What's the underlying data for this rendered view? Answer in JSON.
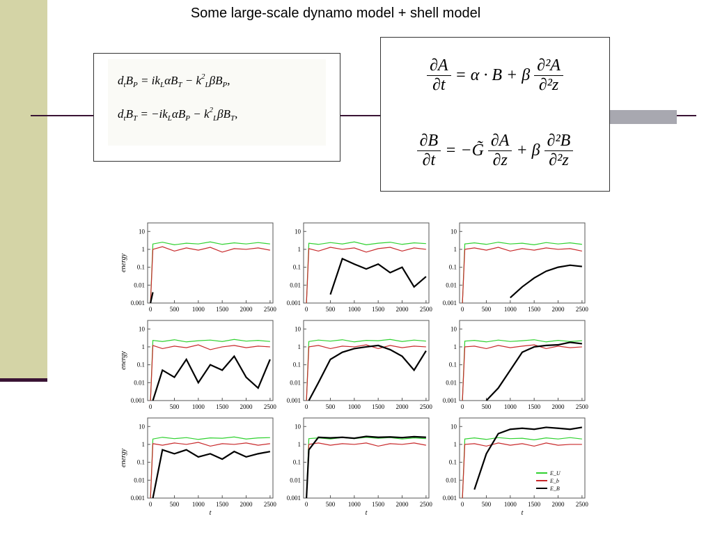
{
  "title": "Some large-scale dynamo model + shell model",
  "equations_left": [
    [
      {
        "text": "d"
      },
      {
        "text": "t",
        "style": "sub"
      },
      {
        "text": "B"
      },
      {
        "text": "P",
        "style": "sub"
      },
      {
        "text": " = ik"
      },
      {
        "text": "L",
        "style": "sub"
      },
      {
        "text": "αB"
      },
      {
        "text": "T",
        "style": "sub"
      },
      {
        "text": " − k"
      },
      {
        "text": "2",
        "style": "sup"
      },
      {
        "text": "L",
        "style": "sub"
      },
      {
        "text": "βB"
      },
      {
        "text": "P",
        "style": "sub"
      },
      {
        "text": ","
      }
    ],
    [
      {
        "text": "d"
      },
      {
        "text": "t",
        "style": "sub"
      },
      {
        "text": "B"
      },
      {
        "text": "T",
        "style": "sub"
      },
      {
        "text": " = −ik"
      },
      {
        "text": "L",
        "style": "sub"
      },
      {
        "text": "αB"
      },
      {
        "text": "P",
        "style": "sub"
      },
      {
        "text": " − k"
      },
      {
        "text": "2",
        "style": "sup"
      },
      {
        "text": "L",
        "style": "sub"
      },
      {
        "text": "βB"
      },
      {
        "text": "T",
        "style": "sub"
      },
      {
        "text": ","
      }
    ]
  ],
  "equations_right": [
    [
      {
        "num": "∂A",
        "den": "∂t"
      },
      {
        "text": "= α · B + β"
      },
      {
        "num": "∂²A",
        "den": "∂²z"
      }
    ],
    [
      {
        "num": "∂B",
        "den": "∂t"
      },
      {
        "text": "= −G̃"
      },
      {
        "num": "∂A",
        "den": "∂z"
      },
      {
        "text": "+ β"
      },
      {
        "num": "∂²B",
        "den": "∂²z"
      }
    ]
  ],
  "chart_data": [
    {
      "type": "line",
      "ylabel": "energy",
      "log_y": true,
      "x": [
        0,
        50,
        250,
        500,
        750,
        1000,
        1250,
        1500,
        1750,
        2000,
        2250,
        2500
      ],
      "xlim": [
        -60,
        2560
      ],
      "ylim": [
        0.001,
        30
      ],
      "xticks": [
        0,
        500,
        1000,
        1500,
        2000,
        2500
      ],
      "yticks": [
        0.001,
        0.01,
        0.1,
        1,
        10
      ],
      "series": [
        {
          "color": "#2fd12f",
          "values": [
            0.001,
            2,
            2.5,
            1.8,
            2.2,
            2,
            2.6,
            1.9,
            2.3,
            2,
            2.4,
            2
          ]
        },
        {
          "color": "#c8282a",
          "values": [
            0.001,
            1,
            1.4,
            0.8,
            1.2,
            0.9,
            1.3,
            0.7,
            1.1,
            1,
            1.2,
            0.9
          ]
        },
        {
          "color": "#000000",
          "values": [
            0.001,
            0.004,
            null,
            null,
            null,
            null,
            null,
            null,
            null,
            null,
            null,
            null
          ]
        }
      ]
    },
    {
      "type": "line",
      "log_y": true,
      "x": [
        0,
        50,
        250,
        500,
        750,
        1000,
        1250,
        1500,
        1750,
        2000,
        2250,
        2500
      ],
      "xlim": [
        -60,
        2560
      ],
      "ylim": [
        0.001,
        30
      ],
      "xticks": [
        0,
        500,
        1000,
        1500,
        2000,
        2500
      ],
      "yticks": [
        0.001,
        0.01,
        0.1,
        1,
        10
      ],
      "series": [
        {
          "color": "#2fd12f",
          "values": [
            0.001,
            2.2,
            1.9,
            2.4,
            2,
            2.6,
            1.8,
            2.2,
            2.5,
            1.9,
            2.3,
            2.1
          ]
        },
        {
          "color": "#c8282a",
          "values": [
            0.001,
            1.1,
            0.8,
            1.3,
            1,
            1.2,
            0.7,
            1.1,
            1.3,
            0.8,
            1.2,
            1
          ]
        },
        {
          "color": "#000000",
          "values": [
            null,
            null,
            null,
            0.003,
            0.3,
            0.15,
            0.08,
            0.15,
            0.05,
            0.1,
            0.008,
            0.03
          ]
        }
      ]
    },
    {
      "type": "line",
      "log_y": true,
      "x": [
        0,
        50,
        250,
        500,
        750,
        1000,
        1250,
        1500,
        1750,
        2000,
        2250,
        2500
      ],
      "xlim": [
        -60,
        2560
      ],
      "ylim": [
        0.001,
        30
      ],
      "xticks": [
        0,
        500,
        1000,
        1500,
        2000,
        2500
      ],
      "yticks": [
        0.001,
        0.01,
        0.1,
        1,
        10
      ],
      "series": [
        {
          "color": "#2fd12f",
          "values": [
            0.001,
            2,
            2.3,
            1.9,
            2.5,
            2,
            2.2,
            1.8,
            2.4,
            2,
            2.3,
            1.9
          ]
        },
        {
          "color": "#c8282a",
          "values": [
            0.001,
            1,
            1.2,
            0.9,
            1.3,
            0.8,
            1.1,
            0.9,
            1.2,
            1,
            1.1,
            0.8
          ]
        },
        {
          "color": "#000000",
          "values": [
            null,
            null,
            null,
            null,
            null,
            0.002,
            0.008,
            0.025,
            0.06,
            0.1,
            0.13,
            0.11
          ]
        }
      ]
    },
    {
      "type": "line",
      "ylabel": "energy",
      "log_y": true,
      "x": [
        0,
        50,
        250,
        500,
        750,
        1000,
        1250,
        1500,
        1750,
        2000,
        2250,
        2500
      ],
      "xlim": [
        -60,
        2560
      ],
      "ylim": [
        0.001,
        30
      ],
      "xticks": [
        0,
        500,
        1000,
        1500,
        2000,
        2500
      ],
      "yticks": [
        0.001,
        0.01,
        0.1,
        1,
        10
      ],
      "series": [
        {
          "color": "#2fd12f",
          "values": [
            0.001,
            2.3,
            2,
            2.5,
            1.9,
            2.2,
            2.4,
            2,
            2.6,
            2.1,
            2.3,
            2
          ]
        },
        {
          "color": "#c8282a",
          "values": [
            0.001,
            1.2,
            0.8,
            1.1,
            0.9,
            1.3,
            0.7,
            1,
            1.2,
            0.9,
            1.1,
            1
          ]
        },
        {
          "color": "#000000",
          "values": [
            null,
            0.001,
            0.05,
            0.02,
            0.2,
            0.01,
            0.1,
            0.05,
            0.3,
            0.02,
            0.005,
            0.2
          ]
        }
      ]
    },
    {
      "type": "line",
      "log_y": true,
      "x": [
        0,
        50,
        250,
        500,
        750,
        1000,
        1250,
        1500,
        1750,
        2000,
        2250,
        2500
      ],
      "xlim": [
        -60,
        2560
      ],
      "ylim": [
        0.001,
        30
      ],
      "xticks": [
        0,
        500,
        1000,
        1500,
        2000,
        2500
      ],
      "yticks": [
        0.001,
        0.01,
        0.1,
        1,
        10
      ],
      "series": [
        {
          "color": "#2fd12f",
          "values": [
            0.001,
            2,
            2.4,
            2.1,
            2.5,
            1.9,
            2.3,
            2.2,
            2.6,
            2,
            2.4,
            2.1
          ]
        },
        {
          "color": "#c8282a",
          "values": [
            0.001,
            1,
            1.2,
            0.8,
            1.1,
            1,
            1.3,
            0.8,
            1.2,
            0.9,
            1.1,
            1
          ]
        },
        {
          "color": "#000000",
          "values": [
            null,
            0.001,
            0.01,
            0.2,
            0.5,
            0.8,
            1,
            1.2,
            0.7,
            0.3,
            0.05,
            0.6
          ]
        }
      ]
    },
    {
      "type": "line",
      "log_y": true,
      "x": [
        0,
        50,
        250,
        500,
        750,
        1000,
        1250,
        1500,
        1750,
        2000,
        2250,
        2500
      ],
      "xlim": [
        -60,
        2560
      ],
      "ylim": [
        0.001,
        30
      ],
      "xticks": [
        0,
        500,
        1000,
        1500,
        2000,
        2500
      ],
      "yticks": [
        0.001,
        0.01,
        0.1,
        1,
        10
      ],
      "series": [
        {
          "color": "#2fd12f",
          "values": [
            0.001,
            2.1,
            2.3,
            1.9,
            2.4,
            2,
            2.2,
            2.5,
            1.9,
            2.3,
            2,
            2.2
          ]
        },
        {
          "color": "#c8282a",
          "values": [
            0.001,
            1,
            1.1,
            0.8,
            1.2,
            0.9,
            1.1,
            1.3,
            0.8,
            1.1,
            0.9,
            1
          ]
        },
        {
          "color": "#000000",
          "values": [
            null,
            null,
            null,
            0.001,
            0.005,
            0.05,
            0.5,
            1,
            1.2,
            1.3,
            1.8,
            1.5
          ]
        }
      ]
    },
    {
      "type": "line",
      "ylabel": "energy",
      "xlabel": "t",
      "log_y": true,
      "x": [
        0,
        50,
        250,
        500,
        750,
        1000,
        1250,
        1500,
        1750,
        2000,
        2250,
        2500
      ],
      "xlim": [
        -60,
        2560
      ],
      "ylim": [
        0.001,
        30
      ],
      "xticks": [
        0,
        500,
        1000,
        1500,
        2000,
        2500
      ],
      "yticks": [
        0.001,
        0.01,
        0.1,
        1,
        10
      ],
      "series": [
        {
          "color": "#2fd12f",
          "values": [
            0.001,
            2,
            2.5,
            2.1,
            2.4,
            1.9,
            2.3,
            2.2,
            2.6,
            2,
            2.3,
            2.4
          ]
        },
        {
          "color": "#c8282a",
          "values": [
            0.001,
            1.1,
            0.9,
            1.2,
            1,
            1.3,
            0.8,
            1.1,
            1,
            1.2,
            0.9,
            1.1
          ]
        },
        {
          "color": "#000000",
          "values": [
            null,
            0.001,
            0.5,
            0.3,
            0.5,
            0.2,
            0.3,
            0.15,
            0.4,
            0.2,
            0.3,
            0.4
          ]
        }
      ]
    },
    {
      "type": "line",
      "xlabel": "t",
      "log_y": true,
      "x": [
        0,
        50,
        250,
        500,
        750,
        1000,
        1250,
        1500,
        1750,
        2000,
        2250,
        2500
      ],
      "xlim": [
        -60,
        2560
      ],
      "ylim": [
        0.001,
        30
      ],
      "xticks": [
        0,
        500,
        1000,
        1500,
        2000,
        2500
      ],
      "yticks": [
        0.001,
        0.01,
        0.1,
        1,
        10
      ],
      "series": [
        {
          "color": "#2fd12f",
          "values": [
            0.001,
            2.1,
            2.3,
            2,
            2.4,
            2.1,
            2.5,
            2.2,
            2.4,
            2,
            2.3,
            2.1
          ]
        },
        {
          "color": "#c8282a",
          "values": [
            0.001,
            1,
            1.2,
            0.9,
            1.1,
            1,
            1.2,
            0.8,
            1.1,
            1,
            1.2,
            0.9
          ]
        },
        {
          "color": "#000000",
          "values": [
            0.001,
            0.5,
            2.5,
            2.3,
            2.5,
            2.2,
            2.8,
            2.5,
            2.6,
            2.4,
            2.7,
            2.5
          ]
        }
      ]
    },
    {
      "type": "line",
      "xlabel": "t",
      "log_y": true,
      "legend": "lower right",
      "x": [
        0,
        50,
        250,
        500,
        750,
        1000,
        1250,
        1500,
        1750,
        2000,
        2250,
        2500
      ],
      "xlim": [
        -60,
        2560
      ],
      "ylim": [
        0.001,
        30
      ],
      "xticks": [
        0,
        500,
        1000,
        1500,
        2000,
        2500
      ],
      "yticks": [
        0.001,
        0.01,
        0.1,
        1,
        10
      ],
      "series": [
        {
          "name": "E_U",
          "color": "#2fd12f",
          "values": [
            0.001,
            2,
            2.3,
            1.9,
            2.4,
            2.1,
            2.2,
            1.8,
            2.3,
            2,
            2.4,
            2
          ]
        },
        {
          "name": "E_b",
          "color": "#c8282a",
          "values": [
            0.001,
            1,
            1.1,
            0.8,
            1.2,
            0.9,
            1.1,
            0.8,
            1.2,
            0.9,
            1,
            1
          ]
        },
        {
          "name": "E_B",
          "color": "#000000",
          "values": [
            null,
            null,
            0.003,
            0.3,
            4,
            7,
            8,
            7,
            9,
            8,
            7,
            9
          ]
        }
      ]
    }
  ]
}
